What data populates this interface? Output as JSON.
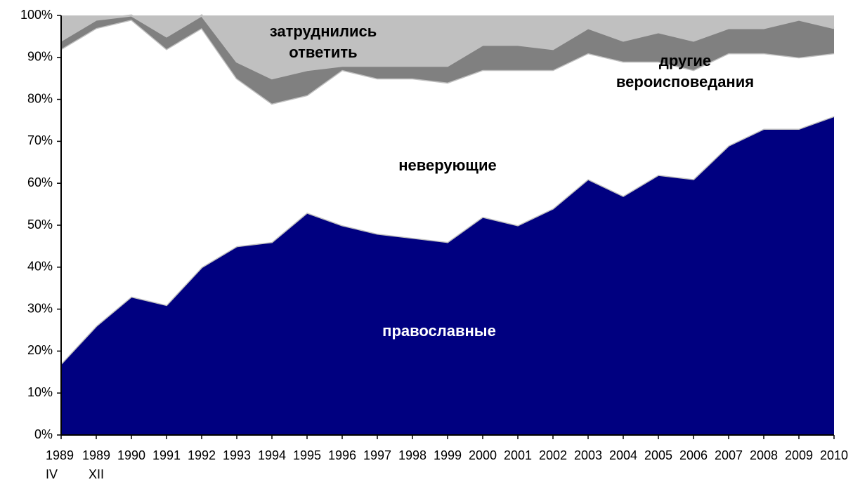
{
  "chart_data": {
    "type": "stacked_area",
    "categories": [
      "1989\nIV",
      "1989\nXII",
      "1990",
      "1991",
      "1992",
      "1993",
      "1994",
      "1995",
      "1996",
      "1997",
      "1998",
      "1999",
      "2000",
      "2001",
      "2002",
      "2003",
      "2004",
      "2005",
      "2006",
      "2007",
      "2008",
      "2009",
      "2010"
    ],
    "series": [
      {
        "name": "православные",
        "color": "#000080",
        "values": [
          17,
          26,
          33,
          31,
          40,
          45,
          46,
          53,
          50,
          48,
          47,
          46,
          52,
          50,
          54,
          61,
          57,
          62,
          61,
          69,
          73,
          73,
          76
        ]
      },
      {
        "name": "неверующие",
        "color": "#ffffff",
        "values": [
          75,
          71,
          66,
          61,
          57,
          40,
          33,
          28,
          37,
          37,
          38,
          38,
          35,
          37,
          33,
          30,
          32,
          27,
          26,
          22,
          18,
          17,
          15
        ]
      },
      {
        "name": "другие вероисповедания",
        "color": "#808080",
        "values": [
          2,
          2,
          1,
          3,
          3,
          4,
          6,
          6,
          1,
          3,
          3,
          4,
          6,
          6,
          5,
          6,
          5,
          7,
          7,
          6,
          6,
          9,
          6
        ]
      },
      {
        "name": "затруднились ответить",
        "color": "#c0c0c0",
        "values": [
          6,
          1,
          0,
          5,
          0,
          11,
          15,
          13,
          12,
          12,
          12,
          12,
          7,
          7,
          8,
          3,
          6,
          4,
          6,
          3,
          3,
          1,
          3
        ]
      }
    ],
    "ylim": [
      0,
      100
    ],
    "yticks": [
      {
        "value": 0,
        "label": "0%"
      },
      {
        "value": 10,
        "label": "10%"
      },
      {
        "value": 20,
        "label": "20%"
      },
      {
        "value": 30,
        "label": "30%"
      },
      {
        "value": 40,
        "label": "40%"
      },
      {
        "value": 50,
        "label": "50%"
      },
      {
        "value": 60,
        "label": "60%"
      },
      {
        "value": 70,
        "label": "70%"
      },
      {
        "value": 80,
        "label": "80%"
      },
      {
        "value": 90,
        "label": "90%"
      },
      {
        "value": 100,
        "label": "100%"
      }
    ],
    "grid": false
  }
}
